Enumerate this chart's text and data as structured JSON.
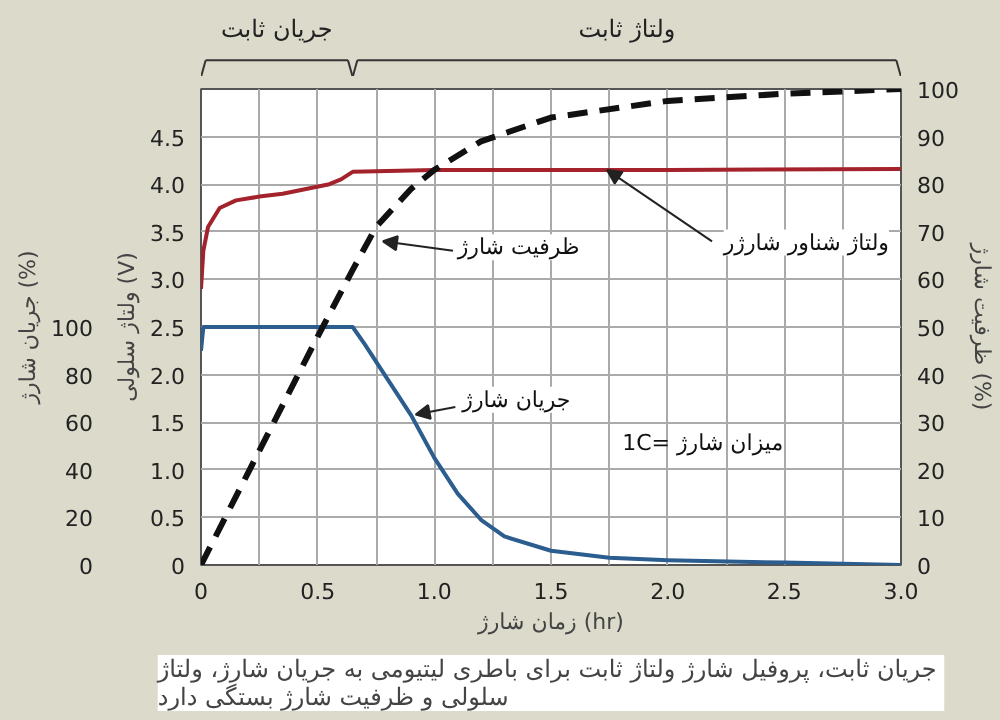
{
  "chart_data": {
    "type": "line",
    "xlabel": "زمان شارژ (hr)",
    "ylabel": "ولتاژ سلولی (V)",
    "y2label": "ظرفیت شارژ (%)",
    "y3label": "جریان شارژ (%)",
    "xlim": [
      0,
      3.0
    ],
    "xticks": [
      0,
      0.5,
      {
        "value": 1,
        "label": "1.0"
      },
      1.5,
      {
        "value": 2,
        "label": "2.0"
      },
      2.5,
      {
        "value": 3,
        "label": "3.0"
      }
    ],
    "ylim": [
      0,
      5.0
    ],
    "yticks": [
      0,
      0.5,
      {
        "value": 1,
        "label": "1.0"
      },
      1.5,
      {
        "value": 2,
        "label": "2.0"
      },
      2.5,
      {
        "value": 3,
        "label": "3.0"
      },
      3.5,
      {
        "value": 4,
        "label": "4.0"
      },
      4.5
    ],
    "y2lim": [
      0,
      100
    ],
    "y2ticks": [
      0,
      10,
      20,
      30,
      40,
      50,
      60,
      70,
      80,
      90,
      100
    ],
    "y3lim": [
      0,
      200
    ],
    "y3ticks": [
      0,
      20,
      40,
      60,
      80,
      100
    ],
    "grid": true,
    "line_style": "solid",
    "series": [
      {
        "color": "#a3222b",
        "x": [
          0,
          0.01,
          0.03,
          0.08,
          0.15,
          0.25,
          0.35,
          0.45,
          0.55,
          0.6,
          0.65,
          1.0,
          2.0,
          3.0
        ],
        "values": [
          2.9,
          3.3,
          3.55,
          3.75,
          3.83,
          3.87,
          3.9,
          3.95,
          4.0,
          4.05,
          4.13,
          4.15,
          4.15,
          4.16
        ]
      },
      {
        "color": "#2c5d8f",
        "axis": "y3",
        "x": [
          0,
          0.01,
          0.65,
          0.7,
          0.8,
          0.9,
          1.0,
          1.1,
          1.2,
          1.3,
          1.5,
          1.75,
          2.0,
          2.5,
          3.0
        ],
        "values": [
          90,
          100,
          100,
          93,
          78,
          63,
          45,
          30,
          19,
          12,
          6,
          3,
          2,
          1,
          0
        ]
      },
      {
        "color": "#111111",
        "axis": "y2",
        "line_style": "dashed",
        "x": [
          0,
          0.25,
          0.5,
          0.65,
          0.75,
          0.9,
          1.0,
          1.2,
          1.5,
          2.0,
          2.5,
          3.0
        ],
        "values": [
          0,
          24,
          48,
          62,
          71,
          79,
          83,
          89,
          94,
          97.5,
          99,
          100
        ]
      }
    ],
    "annotations": [
      "جریان ثابت",
      "ولتاژ ثابت",
      {
        "text": "ظرفیت شارژ",
        "x": 0.78,
        "y": 3.4
      },
      {
        "text": "ولتاژ شناور شارژر",
        "x": 1.74,
        "y": 4.15
      },
      {
        "text": "جریان شارژ",
        "x": 0.92,
        "y": 1.58
      },
      "1C= میزان شارژ",
      "جریان ثابت، پروفیل شارژ ولتاژ ثابت برای باطری لیتیومی  به جریان شارژ، ولتاژ\nسلولی و ظرفیت شارژ بستگی دارد"
    ]
  }
}
